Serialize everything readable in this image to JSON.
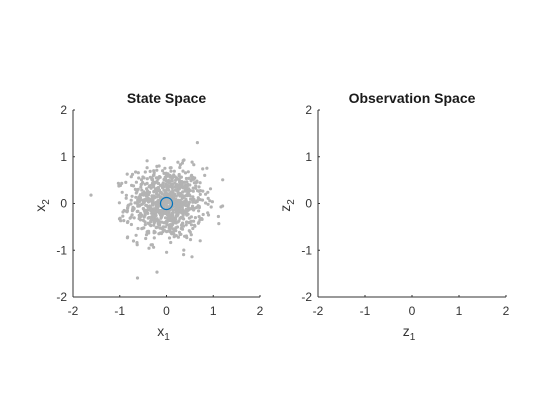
{
  "chart_data": [
    {
      "type": "scatter",
      "title": "State Space",
      "xlabel": {
        "base": "x",
        "sub": "1"
      },
      "ylabel": {
        "base": "x",
        "sub": "2"
      },
      "xlim": [
        -2,
        2
      ],
      "ylim": [
        -2,
        2
      ],
      "xticks": [
        -2,
        -1,
        0,
        1,
        2
      ],
      "yticks": [
        -2,
        -1,
        0,
        1,
        2
      ],
      "grid": false,
      "point_color": "#b3b3b3",
      "cloud": {
        "count": 900,
        "center": [
          0,
          0
        ],
        "std": [
          0.4,
          0.38
        ]
      },
      "marker": {
        "x": 0,
        "y": 0,
        "color": "#0072bd",
        "shape": "circle"
      }
    },
    {
      "type": "scatter",
      "title": "Observation Space",
      "xlabel": {
        "base": "z",
        "sub": "1"
      },
      "ylabel": {
        "base": "z",
        "sub": "2"
      },
      "xlim": [
        -2,
        2
      ],
      "ylim": [
        -2,
        2
      ],
      "xticks": [
        -2,
        -1,
        0,
        1,
        2
      ],
      "yticks": [
        -2,
        -1,
        0,
        1,
        2
      ],
      "grid": false
    }
  ]
}
